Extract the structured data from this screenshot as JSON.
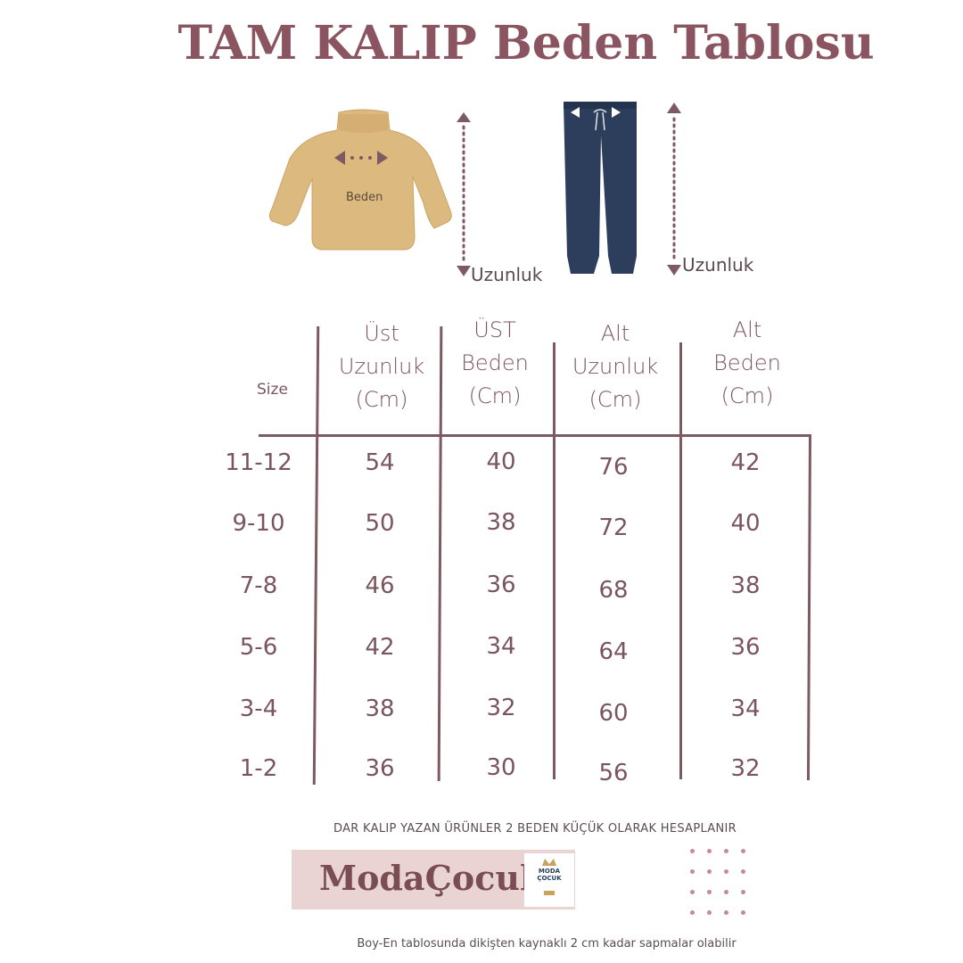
{
  "title": "TAM KALIP Beden Tablosu",
  "illustration": {
    "top_width_label": "Beden",
    "top_length_label": "Uzunluk",
    "bottom_length_label": "Uzunluk",
    "top_color": "#dcb97e",
    "bottom_color": "#2c3e5c",
    "arrow_color": "#7d5962"
  },
  "table": {
    "size_header": "Size",
    "columns": [
      [
        "Üst",
        "Uzunluk",
        "(Cm)"
      ],
      [
        "ÜST",
        "Beden",
        "(Cm)"
      ],
      [
        "Alt",
        "Uzunluk",
        "(Cm)"
      ],
      [
        "Alt",
        "Beden",
        "(Cm)"
      ]
    ],
    "rows": [
      {
        "size": "11-12",
        "values": [
          "54",
          "40",
          "76",
          "42"
        ]
      },
      {
        "size": "9-10",
        "values": [
          "50",
          "38",
          "72",
          "40"
        ]
      },
      {
        "size": "7-8",
        "values": [
          "46",
          "36",
          "68",
          "38"
        ]
      },
      {
        "size": "5-6",
        "values": [
          "42",
          "34",
          "64",
          "36"
        ]
      },
      {
        "size": "3-4",
        "values": [
          "38",
          "32",
          "60",
          "34"
        ]
      },
      {
        "size": "1-2",
        "values": [
          "36",
          "30",
          "56",
          "32"
        ]
      }
    ]
  },
  "note_top": "DAR KALIP YAZAN ÜRÜNLER 2 BEDEN KÜÇÜK OLARAK  HESAPLANIR",
  "brand": {
    "name": "ModaÇocuk",
    "logo_text": [
      "MODA",
      "ÇOCUK"
    ]
  },
  "note_bottom": "Boy-En tablosunda dikişten kaynaklı 2 cm kadar sapmalar olabilir",
  "colors": {
    "title": "#8a5560",
    "text": "#7a5560",
    "lines": "#7d5962",
    "brand_bg": "#e9d4d3"
  }
}
